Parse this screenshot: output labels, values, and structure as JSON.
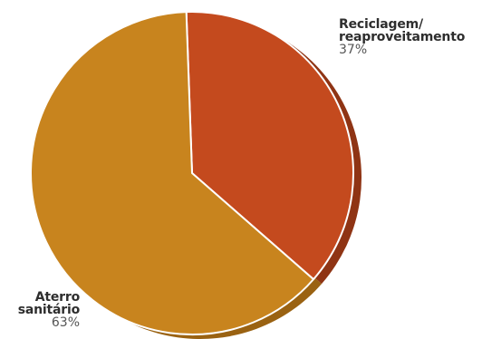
{
  "chart_data": {
    "type": "pie",
    "slices": [
      {
        "label": "Reciclagem/ reaproveitamento",
        "value": 37,
        "value_label": "37%",
        "color": "#c44a1e",
        "shadow_color": "#8f3414"
      },
      {
        "label": "Aterro sanitário",
        "value": 63,
        "value_label": "63%",
        "color": "#c8841e",
        "shadow_color": "#9a6212"
      }
    ],
    "title": "",
    "legend": "none"
  }
}
